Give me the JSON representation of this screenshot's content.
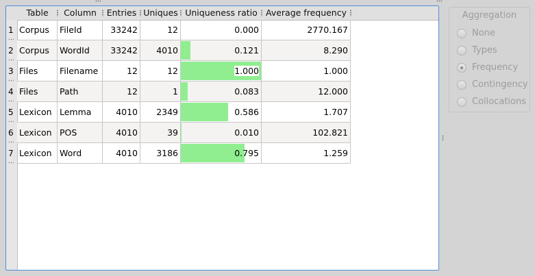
{
  "table": {
    "columns": [
      "Table",
      "Column",
      "Entries",
      "Uniques",
      "Uniqueness ratio",
      "Average frequency"
    ],
    "rows": [
      {
        "num": "1",
        "table": "Corpus",
        "column": "FileId",
        "entries": "33242",
        "uniques": "12",
        "ratio": "0.000",
        "ratio_value": 0.0,
        "avg": "2770.167"
      },
      {
        "num": "2",
        "table": "Corpus",
        "column": "WordId",
        "entries": "33242",
        "uniques": "4010",
        "ratio": "0.121",
        "ratio_value": 0.121,
        "avg": "8.290"
      },
      {
        "num": "3",
        "table": "Files",
        "column": "Filename",
        "entries": "12",
        "uniques": "12",
        "ratio": "1.000",
        "ratio_value": 1.0,
        "avg": "1.000"
      },
      {
        "num": "4",
        "table": "Files",
        "column": "Path",
        "entries": "12",
        "uniques": "1",
        "ratio": "0.083",
        "ratio_value": 0.083,
        "avg": "12.000"
      },
      {
        "num": "5",
        "table": "Lexicon",
        "column": "Lemma",
        "entries": "4010",
        "uniques": "2349",
        "ratio": "0.586",
        "ratio_value": 0.586,
        "avg": "1.707"
      },
      {
        "num": "6",
        "table": "Lexicon",
        "column": "POS",
        "entries": "4010",
        "uniques": "39",
        "ratio": "0.010",
        "ratio_value": 0.01,
        "avg": "102.821"
      },
      {
        "num": "7",
        "table": "Lexicon",
        "column": "Word",
        "entries": "4010",
        "uniques": "3186",
        "ratio": "0.795",
        "ratio_value": 0.795,
        "avg": "1.259"
      }
    ],
    "bar_color": "#90ee90"
  },
  "aggregation": {
    "title": "Aggregation",
    "options": [
      "None",
      "Types",
      "Frequency",
      "Contingency",
      "Collocations"
    ],
    "selected": "Frequency",
    "enabled": false
  },
  "colors": {
    "focus_border": "#4e8fd6",
    "alt_row": "#f5f3f1",
    "disabled_text": "#9c9c9c"
  }
}
